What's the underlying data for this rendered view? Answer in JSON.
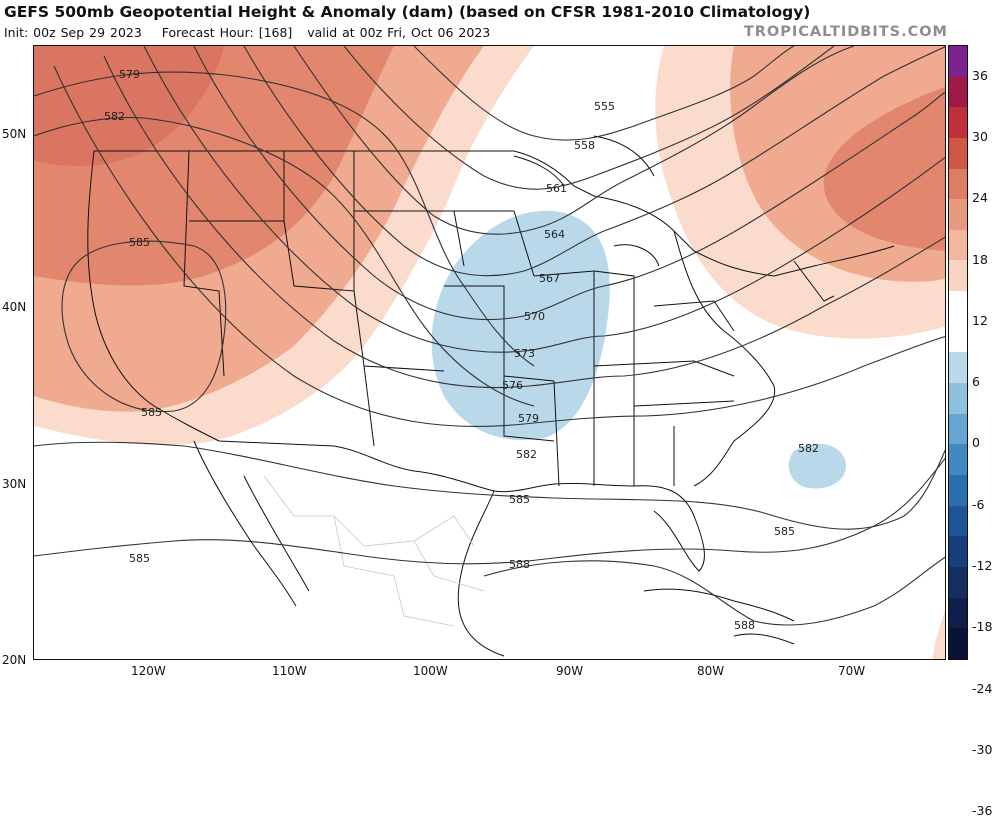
{
  "header": {
    "title": "GEFS 500mb Geopotential Height & Anomaly (dam) (based on CFSR 1981-2010 Climatology)",
    "init": "Init: 00z Sep 29 2023",
    "forecast_hour": "Forecast Hour: [168]",
    "valid": "valid at 00z Fri, Oct 06 2023",
    "brand": "TROPICALTIDBITS.COM"
  },
  "map": {
    "lat_labels": [
      "50N",
      "40N",
      "30N",
      "20N"
    ],
    "lon_labels": [
      "120W",
      "110W",
      "100W",
      "90W",
      "80W",
      "70W"
    ],
    "contour_labels": [
      "579",
      "582",
      "585",
      "585",
      "555",
      "558",
      "561",
      "564",
      "567",
      "570",
      "573",
      "576",
      "579",
      "582",
      "585",
      "585",
      "582",
      "588",
      "588",
      "585"
    ],
    "colors": {
      "positive_strong": "#e2866e",
      "positive_mid": "#f0aa90",
      "positive_light": "#fbdccc",
      "negative_light": "#b9d8ea",
      "contour": "#333333",
      "borders": "#111111"
    }
  },
  "colorbar": {
    "labels": [
      "36",
      "30",
      "24",
      "18",
      "12",
      "6",
      "0",
      "-6",
      "-12",
      "-18",
      "-24",
      "-30",
      "-36"
    ],
    "segments": [
      "#7b2390",
      "#a01a48",
      "#c0303a",
      "#cf5745",
      "#dd7d62",
      "#e89a80",
      "#f2b79e",
      "#f9d4c2",
      "#ffffff",
      "#ffffff",
      "#b9d8ea",
      "#8fc0de",
      "#66a5cf",
      "#418ac0",
      "#2a6fae",
      "#1f5596",
      "#183f7c",
      "#142e62",
      "#0f1f4c",
      "#0a1238"
    ]
  }
}
